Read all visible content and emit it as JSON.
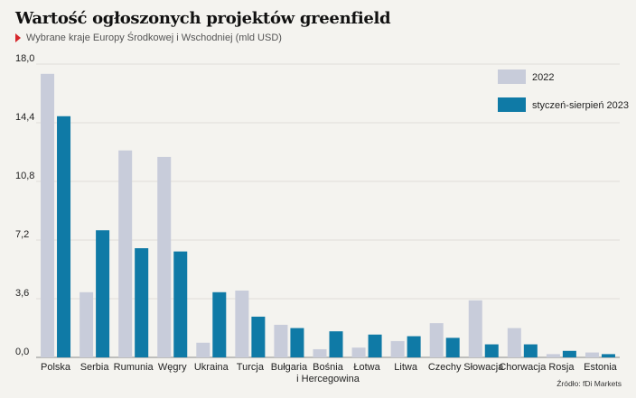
{
  "title": "Wartość ogłoszonych projektów greenfield",
  "subtitle": "Wybrane kraje Europy Środkowej i Wschodniej (mld USD)",
  "source": "Źródło: fDi Markets",
  "colors": {
    "series_2022": "#c8ccda",
    "series_2023": "#0f7aa6"
  },
  "chart_data": {
    "type": "bar",
    "categories": [
      "Polska",
      "Serbia",
      "Rumunia",
      "Węgry",
      "Ukraina",
      "Turcja",
      "Bułgaria",
      "Bośnia\ni Hercegowina",
      "Łotwa",
      "Litwa",
      "Czechy",
      "Słowacja",
      "Chorwacja",
      "Rosja",
      "Estonia"
    ],
    "series": [
      {
        "name": "2022",
        "values": [
          17.4,
          4.0,
          12.7,
          12.3,
          0.9,
          4.1,
          2.0,
          0.5,
          0.6,
          1.0,
          2.1,
          3.5,
          1.8,
          0.2,
          0.3
        ]
      },
      {
        "name": "styczeń-sierpień 2023",
        "values": [
          14.8,
          7.8,
          6.7,
          6.5,
          4.0,
          2.5,
          1.8,
          1.6,
          1.4,
          1.3,
          1.2,
          0.8,
          0.8,
          0.4,
          0.2
        ]
      }
    ],
    "yticks": [
      "0,0",
      "3,6",
      "7,2",
      "10,8",
      "14,4",
      "18,0"
    ],
    "ylim": [
      0,
      18
    ],
    "grid": true,
    "legend": "top-right"
  }
}
